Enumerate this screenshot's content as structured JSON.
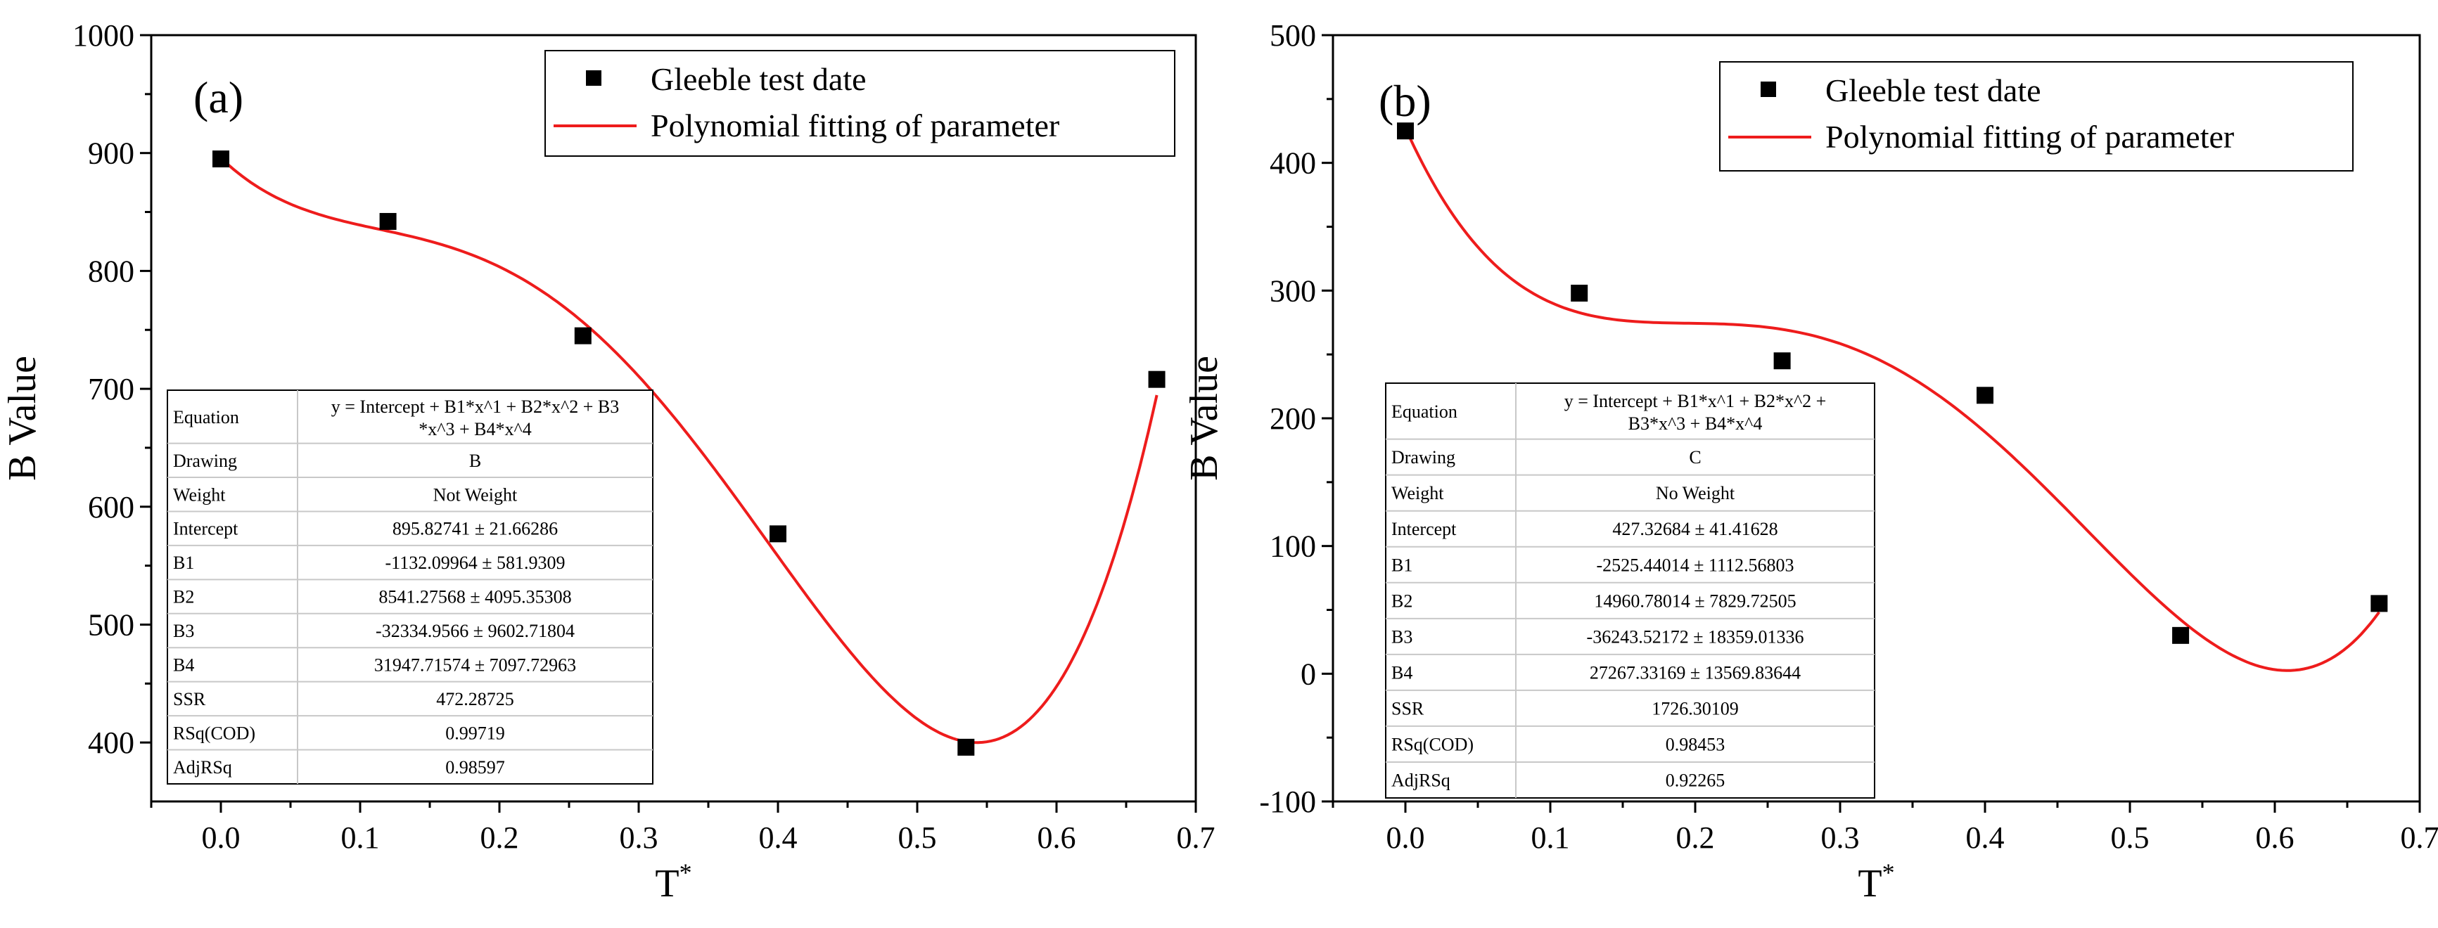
{
  "chart_data": [
    {
      "type": "scatter",
      "panel_label": "(a)",
      "xlabel": "T",
      "xlabel_sup": "*",
      "ylabel": "B Value",
      "xlim": [
        -0.05,
        0.7
      ],
      "ylim": [
        350,
        1000
      ],
      "xticks": [
        "0.0",
        "0.1",
        "0.2",
        "0.3",
        "0.4",
        "0.5",
        "0.6",
        "0.7"
      ],
      "yticks": [
        "400",
        "500",
        "600",
        "700",
        "800",
        "900",
        "1000"
      ],
      "legend": {
        "placement": "top-right",
        "points": "Gleeble test date",
        "line": "Polynomial fitting of parameter"
      },
      "series": [
        {
          "name": "Gleeble test date",
          "x": [
            0.0,
            0.12,
            0.26,
            0.4,
            0.535,
            0.672
          ],
          "y": [
            895,
            842,
            745,
            577,
            396,
            708
          ]
        },
        {
          "name": "Polynomial fitting of parameter",
          "coefficients": [
            895.82741,
            -1132.09964,
            8541.27568,
            -32334.9566,
            31947.71574
          ],
          "x_range": [
            0.0,
            0.672
          ]
        }
      ],
      "table": {
        "rows": [
          [
            "Equation",
            "y = Intercept + B1*x^1 + B2*x^2 + B3",
            "*x^3 + B4*x^4"
          ],
          [
            "Drawing",
            "B"
          ],
          [
            "Weight",
            "Not Weight"
          ],
          [
            "Intercept",
            "895.82741 ± 21.66286"
          ],
          [
            "B1",
            "-1132.09964 ± 581.9309"
          ],
          [
            "B2",
            "8541.27568 ± 4095.35308"
          ],
          [
            "B3",
            "-32334.9566 ± 9602.71804"
          ],
          [
            "B4",
            "31947.71574 ± 7097.72963"
          ],
          [
            "SSR",
            "472.28725"
          ],
          [
            "RSq(COD)",
            "0.99719"
          ],
          [
            "AdjRSq",
            "0.98597"
          ]
        ]
      }
    },
    {
      "type": "scatter",
      "panel_label": "(b)",
      "xlabel": "T",
      "xlabel_sup": "*",
      "ylabel": "B Value",
      "xlim": [
        -0.05,
        0.7
      ],
      "ylim": [
        -100,
        500
      ],
      "xticks": [
        "0.0",
        "0.1",
        "0.2",
        "0.3",
        "0.4",
        "0.5",
        "0.6",
        "0.7"
      ],
      "yticks": [
        "-100",
        "0",
        "100",
        "200",
        "300",
        "400",
        "500"
      ],
      "legend": {
        "placement": "top-right",
        "points": "Gleeble test date",
        "line": "Polynomial fitting of parameter"
      },
      "series": [
        {
          "name": "Gleeble test date",
          "x": [
            0.0,
            0.12,
            0.26,
            0.4,
            0.535,
            0.672
          ],
          "y": [
            425,
            298,
            245,
            218,
            30,
            55
          ]
        },
        {
          "name": "Polynomial fitting of parameter",
          "coefficients": [
            427.32684,
            -2525.44014,
            14960.78014,
            -36243.52172,
            27267.33169
          ],
          "x_range": [
            0.0,
            0.672
          ]
        }
      ],
      "table": {
        "rows": [
          [
            "Equation",
            "y = Intercept + B1*x^1 + B2*x^2 +",
            "B3*x^3 + B4*x^4"
          ],
          [
            "Drawing",
            "C"
          ],
          [
            "Weight",
            "No Weight"
          ],
          [
            "Intercept",
            "427.32684 ± 41.41628"
          ],
          [
            "B1",
            "-2525.44014 ± 1112.56803"
          ],
          [
            "B2",
            "14960.78014 ± 7829.72505"
          ],
          [
            "B3",
            "-36243.52172 ± 18359.01336"
          ],
          [
            "B4",
            "27267.33169 ± 13569.83644"
          ],
          [
            "SSR",
            "1726.30109"
          ],
          [
            "RSq(COD)",
            "0.98453"
          ],
          [
            "AdjRSq",
            "0.92265"
          ]
        ]
      }
    }
  ]
}
